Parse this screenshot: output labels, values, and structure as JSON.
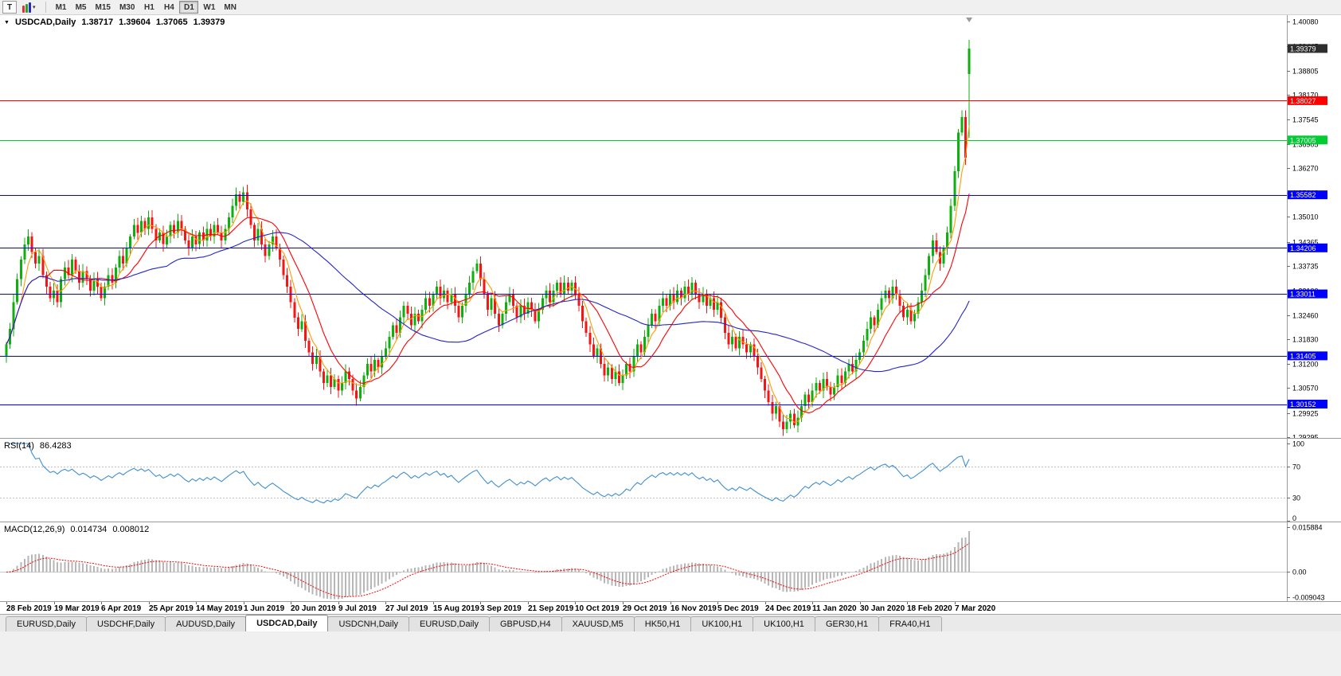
{
  "toolbar": {
    "text_tool_label": "T",
    "timeframes": [
      "M1",
      "M5",
      "M15",
      "M30",
      "H1",
      "H4",
      "D1",
      "W1",
      "MN"
    ],
    "active_timeframe": "D1"
  },
  "chart_header": {
    "collapse_marker": "▼",
    "symbol": "USDCAD,Daily",
    "open": "1.38717",
    "high": "1.39604",
    "low": "1.37065",
    "close": "1.39379"
  },
  "price_axis": {
    "ticks": [
      "1.40080",
      "1.39445",
      "1.38805",
      "1.38170",
      "1.37545",
      "1.36905",
      "1.36270",
      "1.35640",
      "1.35010",
      "1.34365",
      "1.33735",
      "1.33100",
      "1.32460",
      "1.31830",
      "1.31200",
      "1.30570",
      "1.29925",
      "1.29295"
    ]
  },
  "price_labels": [
    {
      "text": "1.39379",
      "price": 1.39379,
      "bg": "#2e2e2e"
    },
    {
      "text": "1.38027",
      "price": 1.38027,
      "bg": "#ff0000"
    },
    {
      "text": "1.37005",
      "price": 1.37005,
      "bg": "#00cc33"
    },
    {
      "text": "1.35582",
      "price": 1.35582,
      "bg": "#0000ff"
    },
    {
      "text": "1.34206",
      "price": 1.34206,
      "bg": "#0000ff"
    },
    {
      "text": "1.33011",
      "price": 1.33011,
      "bg": "#0000ff"
    },
    {
      "text": "1.31405",
      "price": 1.31405,
      "bg": "#0000ff"
    },
    {
      "text": "1.30152",
      "price": 1.30152,
      "bg": "#0000ff"
    }
  ],
  "rsi_panel": {
    "name": "RSI(14)",
    "value": "86.4283",
    "axis": [
      {
        "text": "100",
        "v": 100
      },
      {
        "text": "70",
        "v": 70
      },
      {
        "text": "30",
        "v": 30
      },
      {
        "text": "0",
        "v": 0
      }
    ],
    "levels": [
      70,
      30
    ],
    "line_color": "#3f8fd2"
  },
  "macd_panel": {
    "name": "MACD(12,26,9)",
    "main_value": "0.014734",
    "signal_value": "0.008012",
    "axis": [
      {
        "text": "0.015884",
        "v": 0.015884
      },
      {
        "text": "0.00",
        "v": 0
      },
      {
        "text": "-0.009043",
        "v": -0.009043
      }
    ],
    "hist_color": "#b6b6b6",
    "signal_color": "#ff0000"
  },
  "time_axis": {
    "dates": [
      "28 Feb 2019",
      "19 Mar 2019",
      "6 Apr 2019",
      "25 Apr 2019",
      "14 May 2019",
      "1 Jun 2019",
      "20 Jun 2019",
      "9 Jul 2019",
      "27 Jul 2019",
      "15 Aug 2019",
      "3 Sep 2019",
      "21 Sep 2019",
      "10 Oct 2019",
      "29 Oct 2019",
      "16 Nov 2019",
      "5 Dec 2019",
      "24 Dec 2019",
      "11 Jan 2020",
      "30 Jan 2020",
      "18 Feb 2020",
      "7 Mar 2020"
    ]
  },
  "tabs": [
    "EURUSD,Daily",
    "USDCHF,Daily",
    "AUDUSD,Daily",
    "USDCAD,Daily",
    "USDCNH,Daily",
    "EURUSD,Daily",
    "GBPUSD,H4",
    "XAUUSD,M5",
    "HK50,H1",
    "UK100,H1",
    "UK100,H1",
    "GER30,H1",
    "FRA40,H1"
  ],
  "active_tab_index": 3,
  "chart_data": {
    "type": "candlestick",
    "symbol": "USDCAD",
    "timeframe": "Daily",
    "price_range": [
      1.29295,
      1.4008
    ],
    "up_color": "#0db00d",
    "down_color": "#f41515",
    "closes": [
      1.317,
      1.321,
      1.328,
      1.334,
      1.339,
      1.343,
      1.345,
      1.341,
      1.338,
      1.34,
      1.335,
      1.332,
      1.329,
      1.331,
      1.328,
      1.334,
      1.337,
      1.335,
      1.339,
      1.336,
      1.333,
      1.336,
      1.334,
      1.331,
      1.334,
      1.332,
      1.329,
      1.332,
      1.335,
      1.333,
      1.337,
      1.34,
      1.338,
      1.342,
      1.345,
      1.348,
      1.346,
      1.349,
      1.347,
      1.35,
      1.347,
      1.344,
      1.346,
      1.343,
      1.345,
      1.348,
      1.346,
      1.349,
      1.347,
      1.344,
      1.342,
      1.345,
      1.343,
      1.346,
      1.344,
      1.347,
      1.345,
      1.348,
      1.346,
      1.344,
      1.347,
      1.35,
      1.353,
      1.356,
      1.354,
      1.3565,
      1.352,
      1.348,
      1.344,
      1.347,
      1.343,
      1.34,
      1.343,
      1.345,
      1.342,
      1.339,
      1.335,
      1.332,
      1.328,
      1.324,
      1.321,
      1.323,
      1.318,
      1.315,
      1.312,
      1.314,
      1.31,
      1.307,
      1.309,
      1.306,
      1.308,
      1.305,
      1.307,
      1.31,
      1.308,
      1.305,
      1.303,
      1.306,
      1.309,
      1.312,
      1.31,
      1.313,
      1.311,
      1.314,
      1.316,
      1.319,
      1.322,
      1.32,
      1.324,
      1.327,
      1.325,
      1.322,
      1.325,
      1.323,
      1.326,
      1.329,
      1.327,
      1.33,
      1.332,
      1.329,
      1.331,
      1.328,
      1.33,
      1.327,
      1.324,
      1.327,
      1.33,
      1.333,
      1.336,
      1.338,
      1.334,
      1.33,
      1.326,
      1.329,
      1.325,
      1.322,
      1.325,
      1.328,
      1.33,
      1.327,
      1.324,
      1.327,
      1.325,
      1.328,
      1.326,
      1.323,
      1.326,
      1.329,
      1.331,
      1.328,
      1.331,
      1.333,
      1.33,
      1.333,
      1.331,
      1.333,
      1.33,
      1.327,
      1.323,
      1.32,
      1.317,
      1.314,
      1.316,
      1.312,
      1.309,
      1.311,
      1.308,
      1.31,
      1.307,
      1.309,
      1.312,
      1.31,
      1.314,
      1.317,
      1.315,
      1.319,
      1.322,
      1.325,
      1.323,
      1.327,
      1.329,
      1.327,
      1.33,
      1.328,
      1.331,
      1.329,
      1.332,
      1.33,
      1.333,
      1.33,
      1.328,
      1.33,
      1.327,
      1.329,
      1.326,
      1.328,
      1.324,
      1.32,
      1.317,
      1.319,
      1.316,
      1.319,
      1.317,
      1.315,
      1.317,
      1.314,
      1.311,
      1.308,
      1.305,
      1.302,
      1.299,
      1.301,
      1.297,
      1.295,
      1.297,
      1.299,
      1.296,
      1.298,
      1.301,
      1.304,
      1.302,
      1.305,
      1.307,
      1.305,
      1.308,
      1.306,
      1.304,
      1.306,
      1.309,
      1.307,
      1.31,
      1.312,
      1.31,
      1.313,
      1.315,
      1.318,
      1.321,
      1.324,
      1.322,
      1.326,
      1.329,
      1.331,
      1.329,
      1.332,
      1.33,
      1.327,
      1.324,
      1.326,
      1.323,
      1.325,
      1.328,
      1.331,
      1.335,
      1.34,
      1.344,
      1.341,
      1.338,
      1.342,
      1.346,
      1.353,
      1.362,
      1.372,
      1.376,
      1.3655,
      1.3938
    ],
    "last_candle": {
      "open": 1.38717,
      "high": 1.39604,
      "low": 1.37065,
      "close": 1.39379
    },
    "moving_averages": [
      {
        "period": 5,
        "color": "#ff9d00"
      },
      {
        "period": 12,
        "color": "#ff0000"
      },
      {
        "period": 45,
        "color": "#2424cc"
      }
    ],
    "hlines": [
      {
        "price": 1.38027,
        "color": "#ff0000"
      },
      {
        "price": 1.37005,
        "color": "#00cc33"
      },
      {
        "price": 1.35582,
        "color": "#0000ff"
      },
      {
        "price": 1.34206,
        "color": "#0000ff"
      },
      {
        "price": 1.33011,
        "color": "#0000ff"
      },
      {
        "price": 1.31405,
        "color": "#0000ff"
      },
      {
        "price": 1.30152,
        "color": "#0000ff"
      }
    ],
    "current_price": 1.39379,
    "rsi": {
      "period": 14,
      "current": 86.4283
    },
    "macd": {
      "fast": 12,
      "slow": 26,
      "signal": 9,
      "current_main": 0.014734,
      "current_signal": 0.008012
    }
  }
}
